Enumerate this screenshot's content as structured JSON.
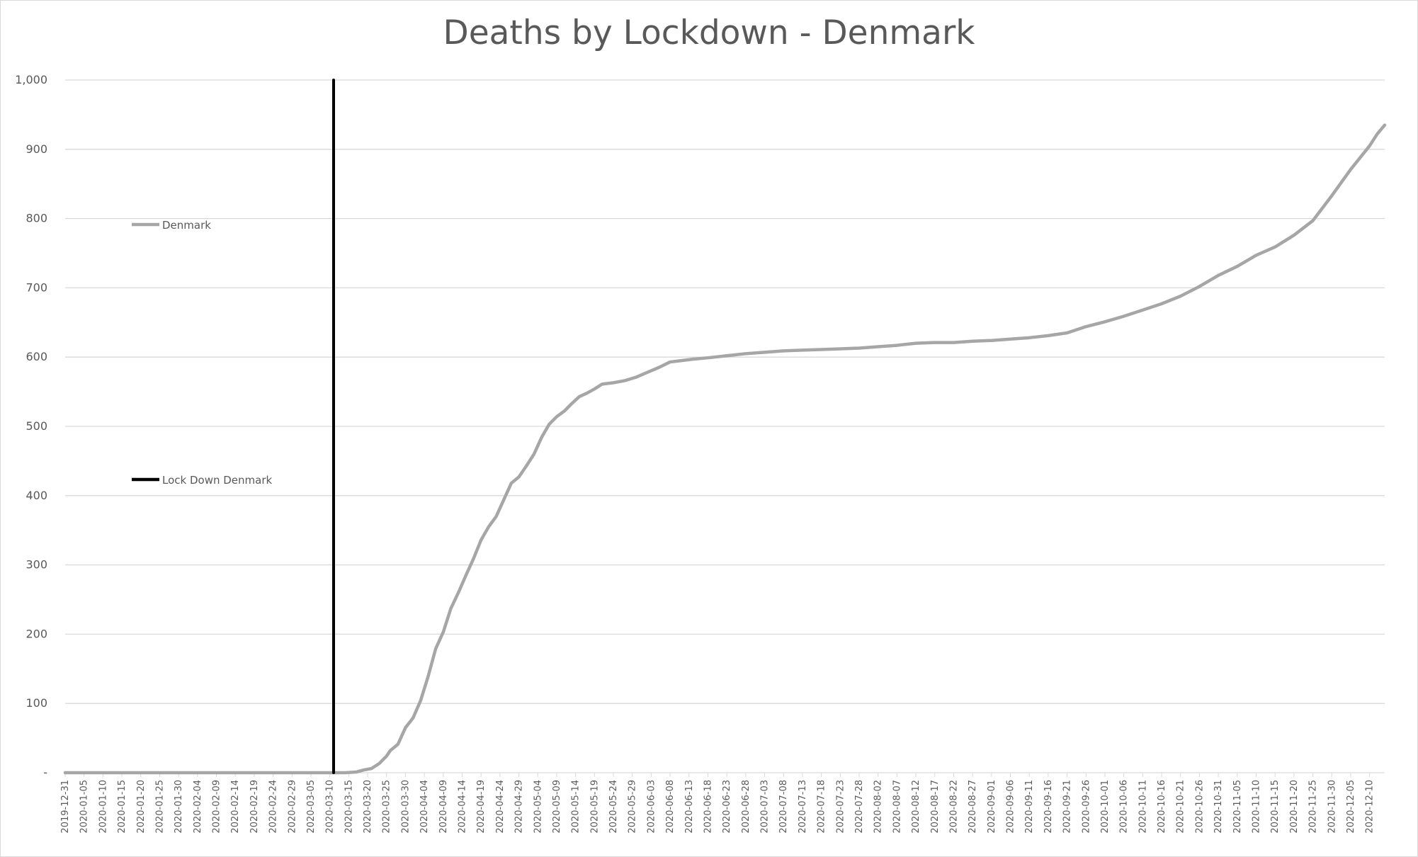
{
  "chart_data": {
    "type": "line",
    "title": "Deaths by Lockdown - Denmark",
    "xlabel": "",
    "ylabel": "",
    "ylim": [
      0,
      1000
    ],
    "yticks": [
      {
        "value": 0,
        "label": "-"
      },
      {
        "value": 100,
        "label": "100"
      },
      {
        "value": 200,
        "label": "200"
      },
      {
        "value": 300,
        "label": "300"
      },
      {
        "value": 400,
        "label": "400"
      },
      {
        "value": 500,
        "label": "500"
      },
      {
        "value": 600,
        "label": "600"
      },
      {
        "value": 700,
        "label": "700"
      },
      {
        "value": 800,
        "label": "800"
      },
      {
        "value": 900,
        "label": "900"
      },
      {
        "value": 1000,
        "label": "1,000"
      }
    ],
    "x_range": [
      "2019-12-31",
      "2020-12-14"
    ],
    "xticks": [
      "2019-12-31",
      "2020-01-05",
      "2020-01-10",
      "2020-01-15",
      "2020-01-20",
      "2020-01-25",
      "2020-01-30",
      "2020-02-04",
      "2020-02-09",
      "2020-02-14",
      "2020-02-19",
      "2020-02-24",
      "2020-02-29",
      "2020-03-05",
      "2020-03-10",
      "2020-03-15",
      "2020-03-20",
      "2020-03-25",
      "2020-03-30",
      "2020-04-04",
      "2020-04-09",
      "2020-04-14",
      "2020-04-19",
      "2020-04-24",
      "2020-04-29",
      "2020-05-04",
      "2020-05-09",
      "2020-05-14",
      "2020-05-19",
      "2020-05-24",
      "2020-05-29",
      "2020-06-03",
      "2020-06-08",
      "2020-06-13",
      "2020-06-18",
      "2020-06-23",
      "2020-06-28",
      "2020-07-03",
      "2020-07-08",
      "2020-07-13",
      "2020-07-18",
      "2020-07-23",
      "2020-07-28",
      "2020-08-02",
      "2020-08-07",
      "2020-08-12",
      "2020-08-17",
      "2020-08-22",
      "2020-08-27",
      "2020-09-01",
      "2020-09-06",
      "2020-09-11",
      "2020-09-16",
      "2020-09-21",
      "2020-09-26",
      "2020-10-01",
      "2020-10-06",
      "2020-10-11",
      "2020-10-16",
      "2020-10-21",
      "2020-10-26",
      "2020-10-31",
      "2020-11-05",
      "2020-11-10",
      "2020-11-15",
      "2020-11-20",
      "2020-11-25",
      "2020-11-30",
      "2020-12-05",
      "2020-12-10"
    ],
    "grid": true,
    "legend_placement": "left-inside",
    "series": [
      {
        "name": "Denmark",
        "color": "#a6a6a6",
        "points": [
          [
            "2019-12-31",
            0
          ],
          [
            "2020-03-14",
            0
          ],
          [
            "2020-03-17",
            1
          ],
          [
            "2020-03-19",
            4
          ],
          [
            "2020-03-21",
            6
          ],
          [
            "2020-03-23",
            13
          ],
          [
            "2020-03-25",
            24
          ],
          [
            "2020-03-26",
            32
          ],
          [
            "2020-03-28",
            41
          ],
          [
            "2020-03-30",
            65
          ],
          [
            "2020-04-01",
            79
          ],
          [
            "2020-04-03",
            104
          ],
          [
            "2020-04-05",
            139
          ],
          [
            "2020-04-07",
            179
          ],
          [
            "2020-04-09",
            203
          ],
          [
            "2020-04-11",
            237
          ],
          [
            "2020-04-13",
            260
          ],
          [
            "2020-04-15",
            285
          ],
          [
            "2020-04-17",
            309
          ],
          [
            "2020-04-19",
            336
          ],
          [
            "2020-04-21",
            355
          ],
          [
            "2020-04-23",
            370
          ],
          [
            "2020-04-25",
            394
          ],
          [
            "2020-04-27",
            418
          ],
          [
            "2020-04-29",
            427
          ],
          [
            "2020-05-01",
            443
          ],
          [
            "2020-05-03",
            460
          ],
          [
            "2020-05-05",
            484
          ],
          [
            "2020-05-07",
            503
          ],
          [
            "2020-05-09",
            514
          ],
          [
            "2020-05-11",
            522
          ],
          [
            "2020-05-13",
            533
          ],
          [
            "2020-05-15",
            543
          ],
          [
            "2020-05-17",
            548
          ],
          [
            "2020-05-19",
            554
          ],
          [
            "2020-05-21",
            561
          ],
          [
            "2020-05-24",
            563
          ],
          [
            "2020-05-27",
            566
          ],
          [
            "2020-05-30",
            571
          ],
          [
            "2020-06-02",
            578
          ],
          [
            "2020-06-05",
            585
          ],
          [
            "2020-06-08",
            593
          ],
          [
            "2020-06-11",
            595
          ],
          [
            "2020-06-14",
            597
          ],
          [
            "2020-06-18",
            599
          ],
          [
            "2020-06-23",
            602
          ],
          [
            "2020-06-28",
            605
          ],
          [
            "2020-07-03",
            607
          ],
          [
            "2020-07-08",
            609
          ],
          [
            "2020-07-13",
            610
          ],
          [
            "2020-07-18",
            611
          ],
          [
            "2020-07-23",
            612
          ],
          [
            "2020-07-28",
            613
          ],
          [
            "2020-08-02",
            615
          ],
          [
            "2020-08-07",
            617
          ],
          [
            "2020-08-12",
            620
          ],
          [
            "2020-08-17",
            621
          ],
          [
            "2020-08-22",
            621
          ],
          [
            "2020-08-27",
            623
          ],
          [
            "2020-09-01",
            624
          ],
          [
            "2020-09-06",
            626
          ],
          [
            "2020-09-11",
            628
          ],
          [
            "2020-09-16",
            631
          ],
          [
            "2020-09-21",
            635
          ],
          [
            "2020-09-26",
            644
          ],
          [
            "2020-10-01",
            651
          ],
          [
            "2020-10-06",
            659
          ],
          [
            "2020-10-11",
            668
          ],
          [
            "2020-10-16",
            677
          ],
          [
            "2020-10-21",
            688
          ],
          [
            "2020-10-26",
            702
          ],
          [
            "2020-10-31",
            718
          ],
          [
            "2020-11-05",
            731
          ],
          [
            "2020-11-10",
            747
          ],
          [
            "2020-11-15",
            759
          ],
          [
            "2020-11-20",
            776
          ],
          [
            "2020-11-25",
            797
          ],
          [
            "2020-11-30",
            833
          ],
          [
            "2020-12-05",
            871
          ],
          [
            "2020-12-10",
            905
          ],
          [
            "2020-12-12",
            922
          ],
          [
            "2020-12-14",
            935
          ]
        ]
      },
      {
        "name": "Lock Down Denmark",
        "color": "#000000",
        "points": [
          [
            "2020-03-11",
            0
          ],
          [
            "2020-03-11",
            1000
          ]
        ]
      }
    ]
  }
}
